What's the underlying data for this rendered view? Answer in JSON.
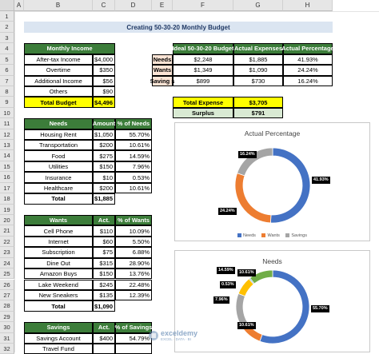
{
  "columns": [
    "A",
    "B",
    "C",
    "D",
    "E",
    "F",
    "G",
    "H"
  ],
  "rows": [
    "1",
    "2",
    "3",
    "4",
    "5",
    "6",
    "7",
    "8",
    "9",
    "10",
    "11",
    "12",
    "13",
    "14",
    "15",
    "16",
    "17",
    "18",
    "19",
    "20",
    "21",
    "22",
    "23",
    "24",
    "25",
    "26",
    "27",
    "28",
    "29",
    "30",
    "31",
    "32"
  ],
  "title": "Creating 50-30-20 Monthly Budget",
  "income": {
    "header": "Monthly Income",
    "rows": [
      {
        "label": "After-tax Income",
        "value": "$4,000"
      },
      {
        "label": "Overtime",
        "value": "$350"
      },
      {
        "label": "Additional Income",
        "value": "$56"
      },
      {
        "label": "Others",
        "value": "$90"
      }
    ],
    "total_label": "Total Budget",
    "total_value": "$4,496"
  },
  "ideal": {
    "headers": [
      "Ideal 50-30-20 Budget",
      "Actual Expenses",
      "Actual Percentage"
    ],
    "rows": [
      {
        "label": "Needs",
        "ideal": "$2,248",
        "actual": "$1,885",
        "pct": "41.93%"
      },
      {
        "label": "Wants",
        "ideal": "$1,349",
        "actual": "$1,090",
        "pct": "24.24%"
      },
      {
        "label": "Saving s",
        "ideal": "$899",
        "actual": "$730",
        "pct": "16.24%"
      }
    ]
  },
  "expense": {
    "label": "Total Expense",
    "value": "$3,705"
  },
  "surplus": {
    "label": "Surplus",
    "value": "$791"
  },
  "needs": {
    "headers": [
      "Needs",
      "Amount",
      "% of Needs"
    ],
    "rows": [
      {
        "label": "Housing Rent",
        "amount": "$1,050",
        "pct": "55.70%"
      },
      {
        "label": "Transportation",
        "amount": "$200",
        "pct": "10.61%"
      },
      {
        "label": "Food",
        "amount": "$275",
        "pct": "14.59%"
      },
      {
        "label": "Utilities",
        "amount": "$150",
        "pct": "7.96%"
      },
      {
        "label": "Insurance",
        "amount": "$10",
        "pct": "0.53%"
      },
      {
        "label": "Healthcare",
        "amount": "$200",
        "pct": "10.61%"
      }
    ],
    "total_label": "Total",
    "total_value": "$1,885"
  },
  "wants": {
    "headers": [
      "Wants",
      "Act.",
      "% of Wants"
    ],
    "rows": [
      {
        "label": "Cell Phone",
        "amount": "$110",
        "pct": "10.09%"
      },
      {
        "label": "Internet",
        "amount": "$60",
        "pct": "5.50%"
      },
      {
        "label": "Subscription",
        "amount": "$75",
        "pct": "6.88%"
      },
      {
        "label": "Dine Out",
        "amount": "$315",
        "pct": "28.90%"
      },
      {
        "label": "Amazon Buys",
        "amount": "$150",
        "pct": "13.76%"
      },
      {
        "label": "Lake Weekend",
        "amount": "$245",
        "pct": "22.48%"
      },
      {
        "label": "New Sneakers",
        "amount": "$135",
        "pct": "12.39%"
      }
    ],
    "total_label": "Total",
    "total_value": "$1,090"
  },
  "savings": {
    "headers": [
      "Savings",
      "Act.",
      "% of Savings"
    ],
    "rows": [
      {
        "label": "Savings Account",
        "amount": "$400",
        "pct": "54.79%"
      },
      {
        "label": "Travel Fund",
        "amount": "",
        "pct": ""
      }
    ]
  },
  "chart_data": [
    {
      "type": "pie",
      "title": "Actual Percentage",
      "categories": [
        "Needs",
        "Wants",
        "Savings"
      ],
      "values": [
        41.93,
        24.24,
        16.24
      ],
      "labels": [
        "41.93%",
        "24.24%",
        "16.24%"
      ],
      "colors": [
        "#4472c4",
        "#ed7d31",
        "#a5a5a5"
      ],
      "legend": "bottom"
    },
    {
      "type": "pie",
      "title": "Needs",
      "categories": [
        "Housing Rent",
        "Transportation",
        "Food",
        "Utilities",
        "Insurance",
        "Healthcare"
      ],
      "values": [
        55.7,
        10.61,
        14.59,
        7.96,
        0.53,
        10.61
      ],
      "labels": [
        "55.70%",
        "10.61%",
        "14.59%",
        "7.96%",
        "0.53%",
        "10.61%"
      ],
      "colors": [
        "#4472c4",
        "#ed7d31",
        "#a5a5a5",
        "#ffc000",
        "#5b9bd5",
        "#70ad47"
      ]
    }
  ],
  "watermark": {
    "name": "exceldemy",
    "tagline": "EXCEL · DATA · BI"
  }
}
